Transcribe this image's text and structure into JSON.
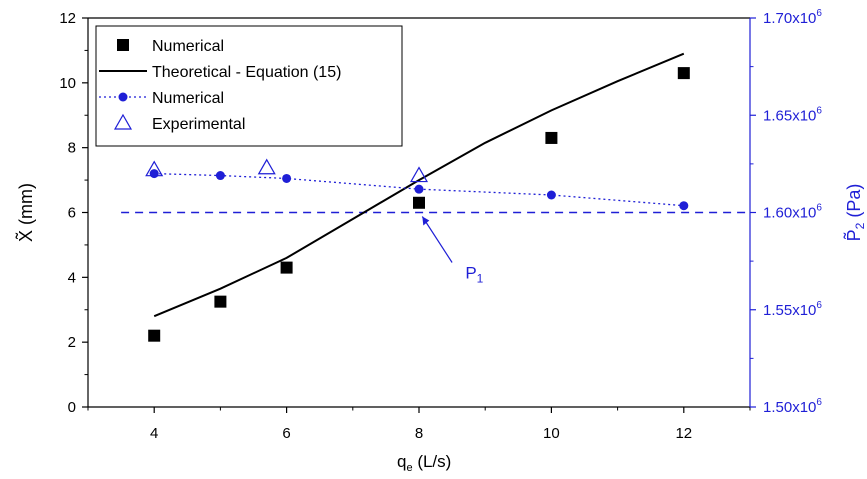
{
  "chart_data": {
    "type": "scatter",
    "x_label": "q",
    "x_label_sub": "e",
    "x_label_units": " (L/s)",
    "y_label": "X̃ (mm)",
    "y2_label": "P̃",
    "y2_label_sub": "2",
    "y2_label_units": " (Pa)",
    "xlim": [
      3,
      13
    ],
    "ylim": [
      0,
      12
    ],
    "y2lim": [
      1.5,
      1.7
    ],
    "x_ticks": [
      4,
      6,
      8,
      10,
      12
    ],
    "y_ticks": [
      0,
      2,
      4,
      6,
      8,
      10,
      12
    ],
    "y2_ticks": [
      {
        "value": 1.5,
        "mantissa": "1.50x10",
        "exp": "6"
      },
      {
        "value": 1.55,
        "mantissa": "1.55x10",
        "exp": "6"
      },
      {
        "value": 1.6,
        "mantissa": "1.60x10",
        "exp": "6"
      },
      {
        "value": 1.65,
        "mantissa": "1.65x10",
        "exp": "6"
      },
      {
        "value": 1.7,
        "mantissa": "1.70x10",
        "exp": "6"
      }
    ],
    "colors": {
      "black": "#000000",
      "blue": "#1f1fd6"
    },
    "series": [
      {
        "name": "Numerical",
        "axis": "left",
        "style": "square",
        "color": "#000000",
        "x": [
          4,
          5,
          6,
          8,
          10,
          12
        ],
        "y": [
          2.2,
          3.25,
          4.3,
          6.3,
          8.3,
          10.3
        ]
      },
      {
        "name": "Theoretical - Equation (15)",
        "axis": "left",
        "style": "line",
        "color": "#000000",
        "x": [
          4,
          5,
          6,
          7,
          8,
          9,
          10,
          11,
          12
        ],
        "y": [
          2.8,
          3.65,
          4.6,
          5.8,
          7.0,
          8.15,
          9.15,
          10.05,
          10.9
        ]
      },
      {
        "name": "Numerical",
        "axis": "right",
        "style": "dotted-circle",
        "color": "#1f1fd6",
        "x": [
          4,
          5,
          6,
          8,
          10,
          12
        ],
        "y": [
          1.62,
          1.619,
          1.6175,
          1.612,
          1.609,
          1.6035
        ]
      },
      {
        "name": "Experimental",
        "axis": "right",
        "style": "triangle",
        "color": "#1f1fd6",
        "x": [
          4,
          5.7,
          8
        ],
        "y": [
          1.622,
          1.623,
          1.619
        ]
      }
    ],
    "reference_line": {
      "axis": "right",
      "y": 1.6,
      "x_start": 3.5,
      "x_end": 13,
      "color": "#1f1fd6"
    },
    "annotation": {
      "text": "P",
      "sub": "1",
      "color": "#1f1fd6"
    },
    "legend_position": "top-left"
  }
}
